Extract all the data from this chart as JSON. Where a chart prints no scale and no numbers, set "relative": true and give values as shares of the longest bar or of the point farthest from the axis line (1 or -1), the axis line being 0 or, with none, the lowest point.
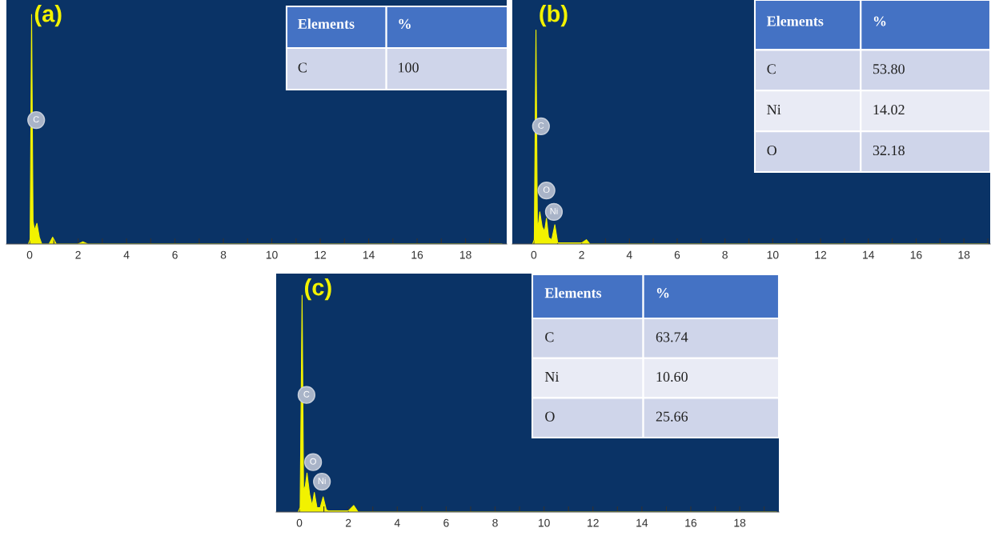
{
  "chart_data": [
    {
      "type": "area",
      "title": "(a)",
      "relative": true,
      "xlim": [
        -0.96,
        19.7
      ],
      "xticks": [
        0,
        {
          "value": 1,
          "label": null
        },
        2,
        {
          "value": 3,
          "label": null
        },
        4,
        {
          "value": 5,
          "label": null
        },
        6,
        {
          "value": 7,
          "label": null
        },
        8,
        {
          "value": 9,
          "label": null
        },
        10,
        {
          "value": 11,
          "label": null
        },
        12,
        {
          "value": 13,
          "label": null
        },
        14,
        {
          "value": 15,
          "label": null
        },
        16,
        {
          "value": 17,
          "label": null
        },
        18,
        {
          "value": 19,
          "label": null
        }
      ],
      "tick_labels": "x",
      "series": [
        {
          "color": "#f2f200",
          "x": [
            -0.05,
            0.02,
            0.08,
            0.14,
            0.2,
            0.3,
            0.4,
            0.5,
            0.8,
            0.95,
            1.1,
            2.0,
            2.2,
            2.4,
            19.5
          ],
          "values": [
            0,
            0.02,
            1.0,
            0.1,
            0.06,
            0.09,
            0.03,
            0,
            0,
            0.03,
            0,
            0,
            0.01,
            0,
            0
          ]
        }
      ],
      "annotations": [
        {
          "text": "C",
          "x": 0.27,
          "y": 0.54
        },
        "Elements",
        "%",
        "C",
        "100"
      ]
    },
    {
      "type": "area",
      "title": "(b)",
      "relative": true,
      "xlim": [
        -0.9,
        19.1
      ],
      "xticks": [
        0,
        {
          "value": 1,
          "label": null
        },
        2,
        {
          "value": 3,
          "label": null
        },
        4,
        {
          "value": 5,
          "label": null
        },
        6,
        {
          "value": 7,
          "label": null
        },
        8,
        {
          "value": 9,
          "label": null
        },
        10,
        {
          "value": 11,
          "label": null
        },
        12,
        {
          "value": 13,
          "label": null
        },
        14,
        {
          "value": 15,
          "label": null
        },
        16,
        {
          "value": 17,
          "label": null
        },
        18,
        {
          "value": 19,
          "label": null
        }
      ],
      "tick_labels": "x",
      "series": [
        {
          "color": "#f2f200",
          "x": [
            -0.05,
            0.02,
            0.09,
            0.15,
            0.2,
            0.25,
            0.35,
            0.45,
            0.53,
            0.62,
            0.75,
            0.88,
            1.0,
            1.1,
            2.0,
            2.2,
            2.35,
            19.0
          ],
          "values": [
            0,
            0.02,
            1.0,
            0.08,
            0.1,
            0.15,
            0.08,
            0.06,
            0.12,
            0.03,
            0.02,
            0.09,
            0.005,
            0.005,
            0.005,
            0.02,
            0,
            0
          ]
        }
      ],
      "annotations": [
        {
          "text": "C",
          "x": 0.3,
          "y": 0.55
        },
        {
          "text": "O",
          "x": 0.53,
          "y": 0.25
        },
        {
          "text": "Ni",
          "x": 0.84,
          "y": 0.15
        },
        "Elements",
        "%",
        "C",
        "53.80",
        "Ni",
        "14.02",
        "O",
        "32.18"
      ]
    },
    {
      "type": "area",
      "title": "(c)",
      "relative": true,
      "xlim": [
        -0.95,
        19.6
      ],
      "xticks": [
        0,
        {
          "value": 1,
          "label": null
        },
        2,
        {
          "value": 3,
          "label": null
        },
        4,
        {
          "value": 5,
          "label": null
        },
        6,
        {
          "value": 7,
          "label": null
        },
        8,
        {
          "value": 9,
          "label": null
        },
        10,
        {
          "value": 11,
          "label": null
        },
        12,
        {
          "value": 13,
          "label": null
        },
        14,
        {
          "value": 15,
          "label": null
        },
        16,
        {
          "value": 17,
          "label": null
        },
        18,
        {
          "value": 19,
          "label": null
        }
      ],
      "tick_labels": "x",
      "series": [
        {
          "color": "#f2f200",
          "x": [
            -0.05,
            0.03,
            0.11,
            0.17,
            0.24,
            0.31,
            0.42,
            0.52,
            0.61,
            0.72,
            0.85,
            0.97,
            1.1,
            1.2,
            2.0,
            2.22,
            2.4,
            19.5
          ],
          "values": [
            0,
            0.02,
            1.0,
            0.1,
            0.12,
            0.18,
            0.08,
            0.03,
            0.09,
            0.02,
            0.02,
            0.07,
            0.01,
            0.005,
            0.005,
            0.03,
            0,
            0
          ]
        }
      ],
      "annotations": [
        {
          "text": "C",
          "x": 0.29,
          "y": 0.54
        },
        {
          "text": "O",
          "x": 0.56,
          "y": 0.23
        },
        {
          "text": "Ni",
          "x": 0.92,
          "y": 0.14
        },
        "Elements",
        "%",
        "C",
        "63.74",
        "Ni",
        "10.60",
        "O",
        "25.66"
      ]
    }
  ]
}
